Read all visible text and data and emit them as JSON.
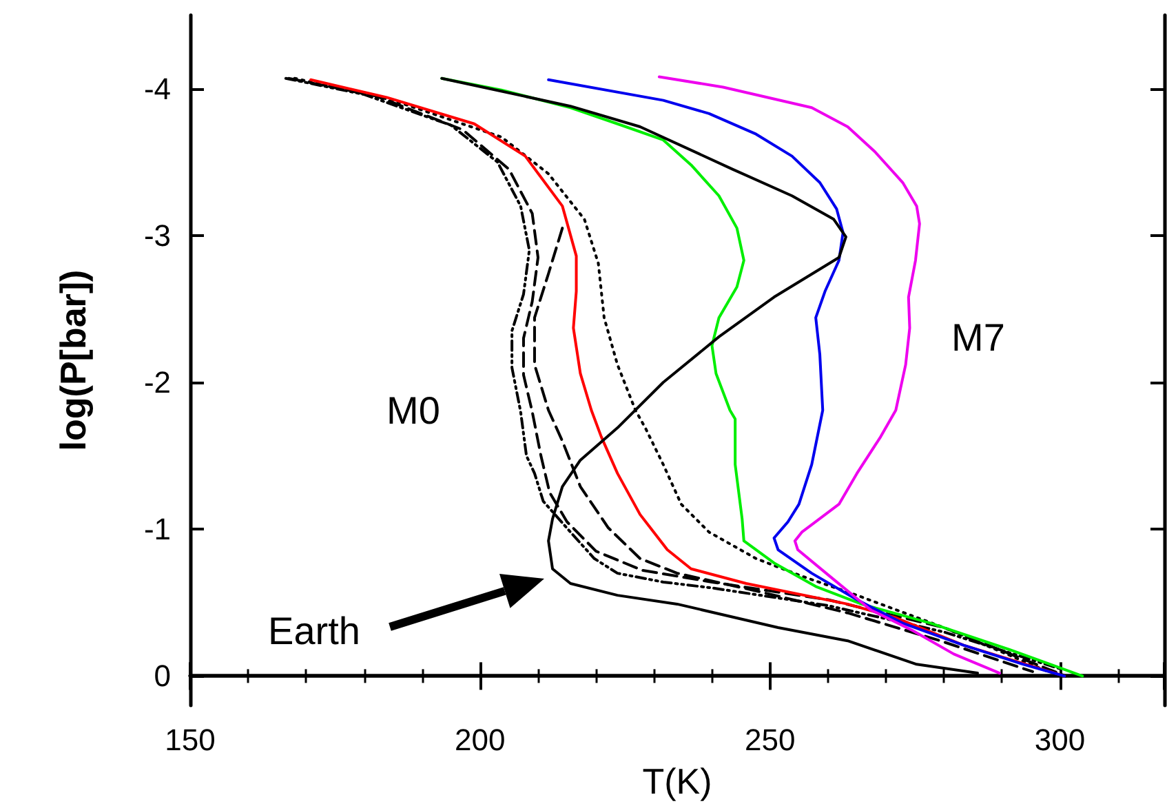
{
  "chart_data": {
    "type": "line",
    "xlabel": "T(K)",
    "ylabel": "log(P[bar])",
    "xlim": [
      150,
      318
    ],
    "xticks": [
      150,
      200,
      250,
      300
    ],
    "ylim": [
      0.2,
      -4.5
    ],
    "yticks": [
      0,
      -1,
      -2,
      -3,
      -4
    ],
    "grid": false,
    "marker": "none",
    "annotations": [
      "M0",
      "M7",
      "Earth"
    ],
    "series": [
      {
        "color": "#000000",
        "line_style": "dashdot",
        "x": [
          166.5,
          180,
          195,
          203,
          207,
          208.5,
          207.5,
          205.5,
          205.5,
          207,
          208,
          209.4,
          210.9,
          215.6,
          219.7,
          223.7,
          231.6,
          240,
          260,
          280,
          300
        ],
        "values": [
          -4.07,
          -3.96,
          -3.75,
          -3.5,
          -3.2,
          -2.9,
          -2.6,
          -2.35,
          -2.1,
          -1.8,
          -1.5,
          -1.38,
          -1.19,
          -0.98,
          -0.8,
          -0.7,
          -0.64,
          -0.6,
          -0.48,
          -0.3,
          -0.05
        ]
      },
      {
        "color": "#000000",
        "line_style": "dashed",
        "x": [
          167,
          182,
          197,
          205,
          209,
          210,
          209,
          207.5,
          207.5,
          209,
          210.5,
          212,
          215,
          220,
          228,
          240,
          260,
          280,
          301
        ],
        "values": [
          -4.07,
          -3.95,
          -3.72,
          -3.45,
          -3.15,
          -2.85,
          -2.55,
          -2.3,
          -2.05,
          -1.8,
          -1.5,
          -1.25,
          -1.05,
          -0.85,
          -0.72,
          -0.64,
          -0.52,
          -0.33,
          0
        ]
      },
      {
        "color": "#000000",
        "line_style": "dashed",
        "x": [
          214.2,
          211.8,
          209.4,
          209.4,
          211.8,
          214.2,
          217.3,
          222.1,
          227.6,
          234,
          247.6,
          263.4,
          279.4,
          295.3
        ],
        "values": [
          -3.05,
          -2.74,
          -2.44,
          -2.12,
          -1.81,
          -1.6,
          -1.29,
          -1.01,
          -0.8,
          -0.7,
          -0.58,
          -0.43,
          -0.24,
          -0.03
        ]
      },
      {
        "color": "#000000",
        "line_style": "dotted",
        "x": [
          168,
          185,
          203.7,
          211.8,
          218,
          220.4,
          221.4,
          223.7,
          226.8,
          228.5,
          231.6,
          234.7,
          239.5,
          247.6,
          255.5,
          265,
          280,
          298
        ],
        "values": [
          -4.07,
          -3.92,
          -3.67,
          -3.42,
          -3.11,
          -2.81,
          -2.44,
          -2.12,
          -1.81,
          -1.69,
          -1.44,
          -1.17,
          -0.98,
          -0.8,
          -0.68,
          -0.55,
          -0.33,
          -0.03
        ]
      },
      {
        "color": "#ff0000",
        "line_style": "solid",
        "x": [
          170.8,
          183.9,
          199,
          207.8,
          214.2,
          216.6,
          216.6,
          216.1,
          217.3,
          219.2,
          220.9,
          223.7,
          227.6,
          232.3,
          236.4,
          245.9,
          263.4,
          271.5,
          283.4,
          300.8
        ],
        "values": [
          -4.06,
          -3.94,
          -3.76,
          -3.54,
          -3.2,
          -2.86,
          -2.62,
          -2.37,
          -2.06,
          -1.81,
          -1.63,
          -1.38,
          -1.1,
          -0.86,
          -0.73,
          -0.63,
          -0.49,
          -0.4,
          -0.21,
          0
        ]
      },
      {
        "color": "#00ee00",
        "line_style": "solid",
        "x": [
          193.4,
          203.7,
          215.6,
          223.7,
          231.6,
          236.4,
          241.2,
          244.3,
          245.5,
          244.3,
          241.2,
          240,
          240.7,
          243.1,
          244,
          244,
          245.2,
          245.5,
          250.7,
          257.9,
          265.8,
          277.7,
          291.3,
          303.9
        ],
        "values": [
          -4.07,
          -3.99,
          -3.87,
          -3.76,
          -3.65,
          -3.48,
          -3.27,
          -3.05,
          -2.83,
          -2.65,
          -2.44,
          -2.25,
          -2.06,
          -1.81,
          -1.75,
          -1.44,
          -1.07,
          -0.92,
          -0.77,
          -0.61,
          -0.49,
          -0.36,
          -0.18,
          0
        ]
      },
      {
        "color": "#0000ee",
        "line_style": "solid",
        "x": [
          211.8,
          231.6,
          239.5,
          247.6,
          253.8,
          258.6,
          261.5,
          262.6,
          261.9,
          259.5,
          257.9,
          258.6,
          259.1,
          257.2,
          255,
          253.1,
          250.7,
          251.4,
          257.2,
          265,
          272.9,
          283.4,
          293.7,
          300.8
        ],
        "values": [
          -4.06,
          -3.92,
          -3.83,
          -3.69,
          -3.54,
          -3.36,
          -3.18,
          -3.02,
          -2.83,
          -2.62,
          -2.44,
          -2.19,
          -1.81,
          -1.44,
          -1.17,
          -1.05,
          -0.94,
          -0.86,
          -0.7,
          -0.52,
          -0.36,
          -0.21,
          -0.08,
          0
        ]
      },
      {
        "color": "#ee00ee",
        "line_style": "solid",
        "x": [
          230.9,
          241.9,
          257.2,
          263.4,
          268.1,
          272.9,
          275.3,
          275.8,
          275.1,
          273.9,
          274.1,
          273.4,
          271.7,
          269.1,
          265,
          261.9,
          255.5,
          254.3,
          254.8,
          260.3,
          267.4,
          274.6,
          281.7,
          289.6
        ],
        "values": [
          -4.08,
          -4.01,
          -3.87,
          -3.74,
          -3.57,
          -3.36,
          -3.2,
          -3.08,
          -2.83,
          -2.58,
          -2.37,
          -2.12,
          -1.81,
          -1.63,
          -1.38,
          -1.17,
          -0.98,
          -0.92,
          -0.86,
          -0.68,
          -0.45,
          -0.31,
          -0.15,
          -0.02
        ]
      },
      {
        "color": "#000000",
        "line_style": "solid",
        "x": [
          193.4,
          215.6,
          227.6,
          243.6,
          253.8,
          261,
          263.1,
          261.9,
          250.7,
          241.2,
          231.6,
          223.7,
          217.3,
          214.2,
          212.5,
          211.8,
          212.5,
          215.6,
          223.7,
          234,
          251.4,
          263.4,
          275.3,
          285.8
        ],
        "values": [
          -4.07,
          -3.88,
          -3.74,
          -3.45,
          -3.27,
          -3.11,
          -2.99,
          -2.85,
          -2.58,
          -2.31,
          -2,
          -1.69,
          -1.47,
          -1.29,
          -1.07,
          -0.92,
          -0.73,
          -0.63,
          -0.55,
          -0.49,
          -0.33,
          -0.24,
          -0.08,
          -0.02
        ]
      }
    ]
  }
}
